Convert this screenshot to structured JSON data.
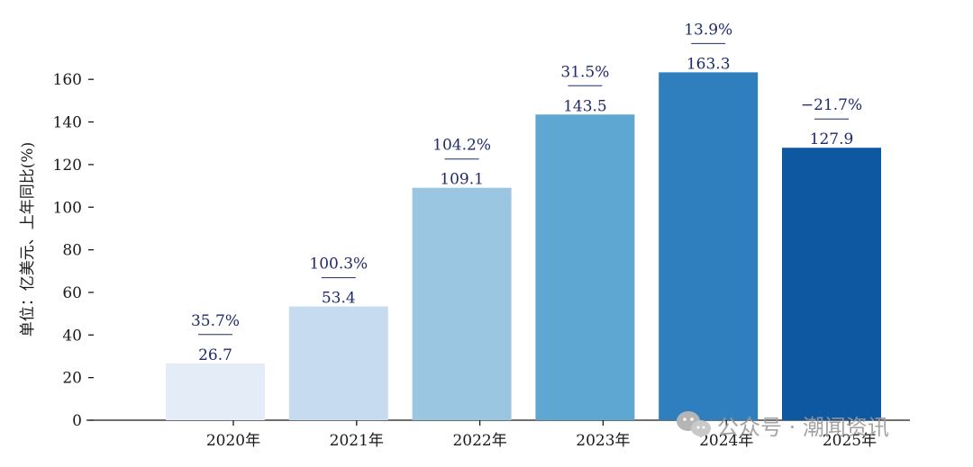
{
  "chart_data": {
    "type": "bar",
    "title": "",
    "xlabel": "",
    "ylabel": "单位：亿美元、上年同比(%)",
    "ylim": [
      0,
      170
    ],
    "yticks": [
      0,
      20,
      40,
      60,
      80,
      100,
      120,
      140,
      160
    ],
    "categories": [
      "2020年",
      "2021年",
      "2022年",
      "2023年",
      "2024年",
      "2025年"
    ],
    "values": [
      26.7,
      53.4,
      109.1,
      143.5,
      163.3,
      127.9
    ],
    "value_labels": [
      "26.7",
      "53.4",
      "109.1",
      "143.5",
      "163.3",
      "127.9"
    ],
    "yoy_growth": [
      "35.7%",
      "100.3%",
      "104.2%",
      "31.5%",
      "13.9%",
      "−21.7%"
    ],
    "bar_colors": [
      "#e3ecf7",
      "#c6dbef",
      "#9ac6e2",
      "#5ea7d3",
      "#2f7fbf",
      "#0e58a2"
    ],
    "annotation_color": "#1f2a6b"
  },
  "watermark": {
    "text": "公众号 · 潮闻资讯",
    "icon": "wechat-icon"
  }
}
